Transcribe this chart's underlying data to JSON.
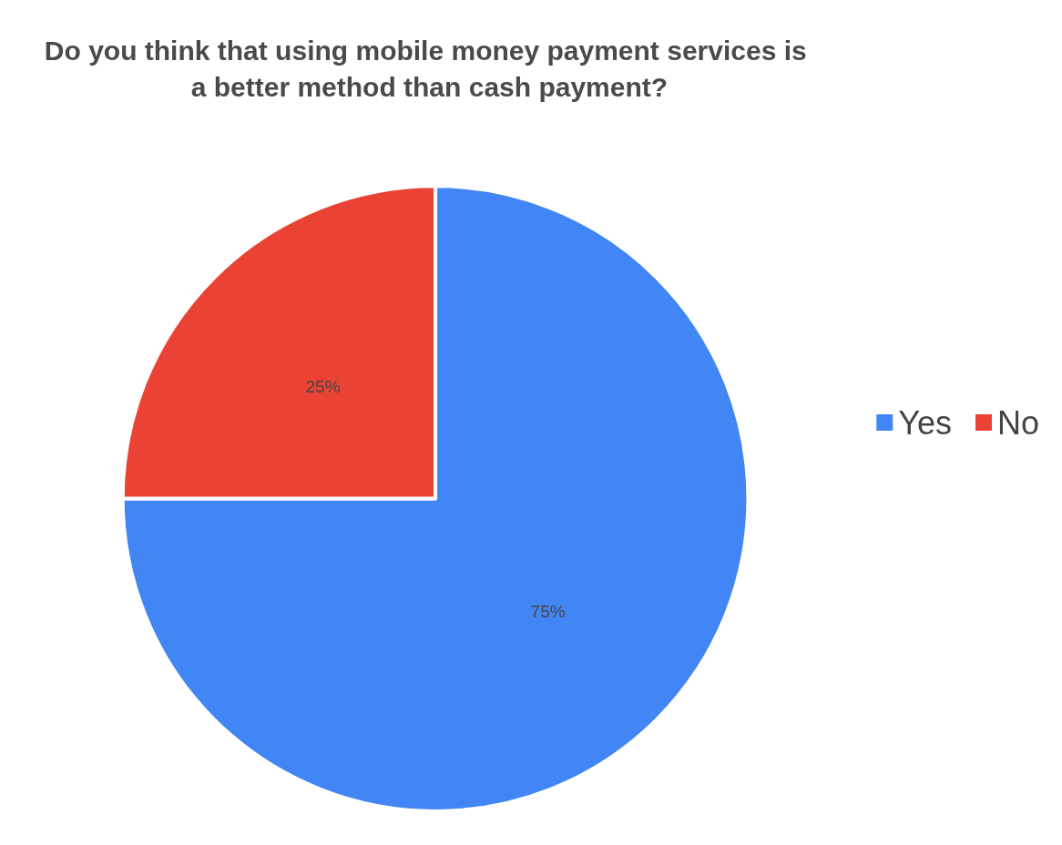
{
  "chart_data": {
    "type": "pie",
    "title": "Do you think that using mobile money payment services is a better method than cash payment?",
    "categories": [
      "Yes",
      "No"
    ],
    "values": [
      75,
      25
    ],
    "colors": [
      "#4285f4",
      "#ea4335"
    ],
    "value_labels": [
      "75%",
      "25%"
    ],
    "legend": "right"
  }
}
